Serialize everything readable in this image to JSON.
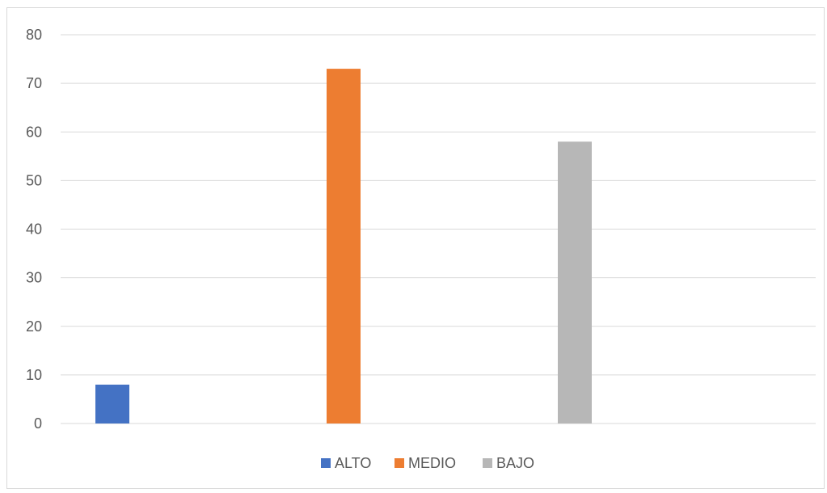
{
  "chart_data": {
    "type": "bar",
    "title": "",
    "xlabel": "",
    "ylabel": "",
    "ylim": [
      0,
      80
    ],
    "yticks": [
      0,
      10,
      20,
      30,
      40,
      50,
      60,
      70,
      80
    ],
    "grid": true,
    "legend_position": "bottom",
    "series": [
      {
        "name": "ALTO",
        "color": "#4472c4",
        "value": 8
      },
      {
        "name": "MEDIO",
        "color": "#ed7d31",
        "value": 73
      },
      {
        "name": "BAJO",
        "color": "#b7b7b7",
        "value": 58
      }
    ]
  }
}
